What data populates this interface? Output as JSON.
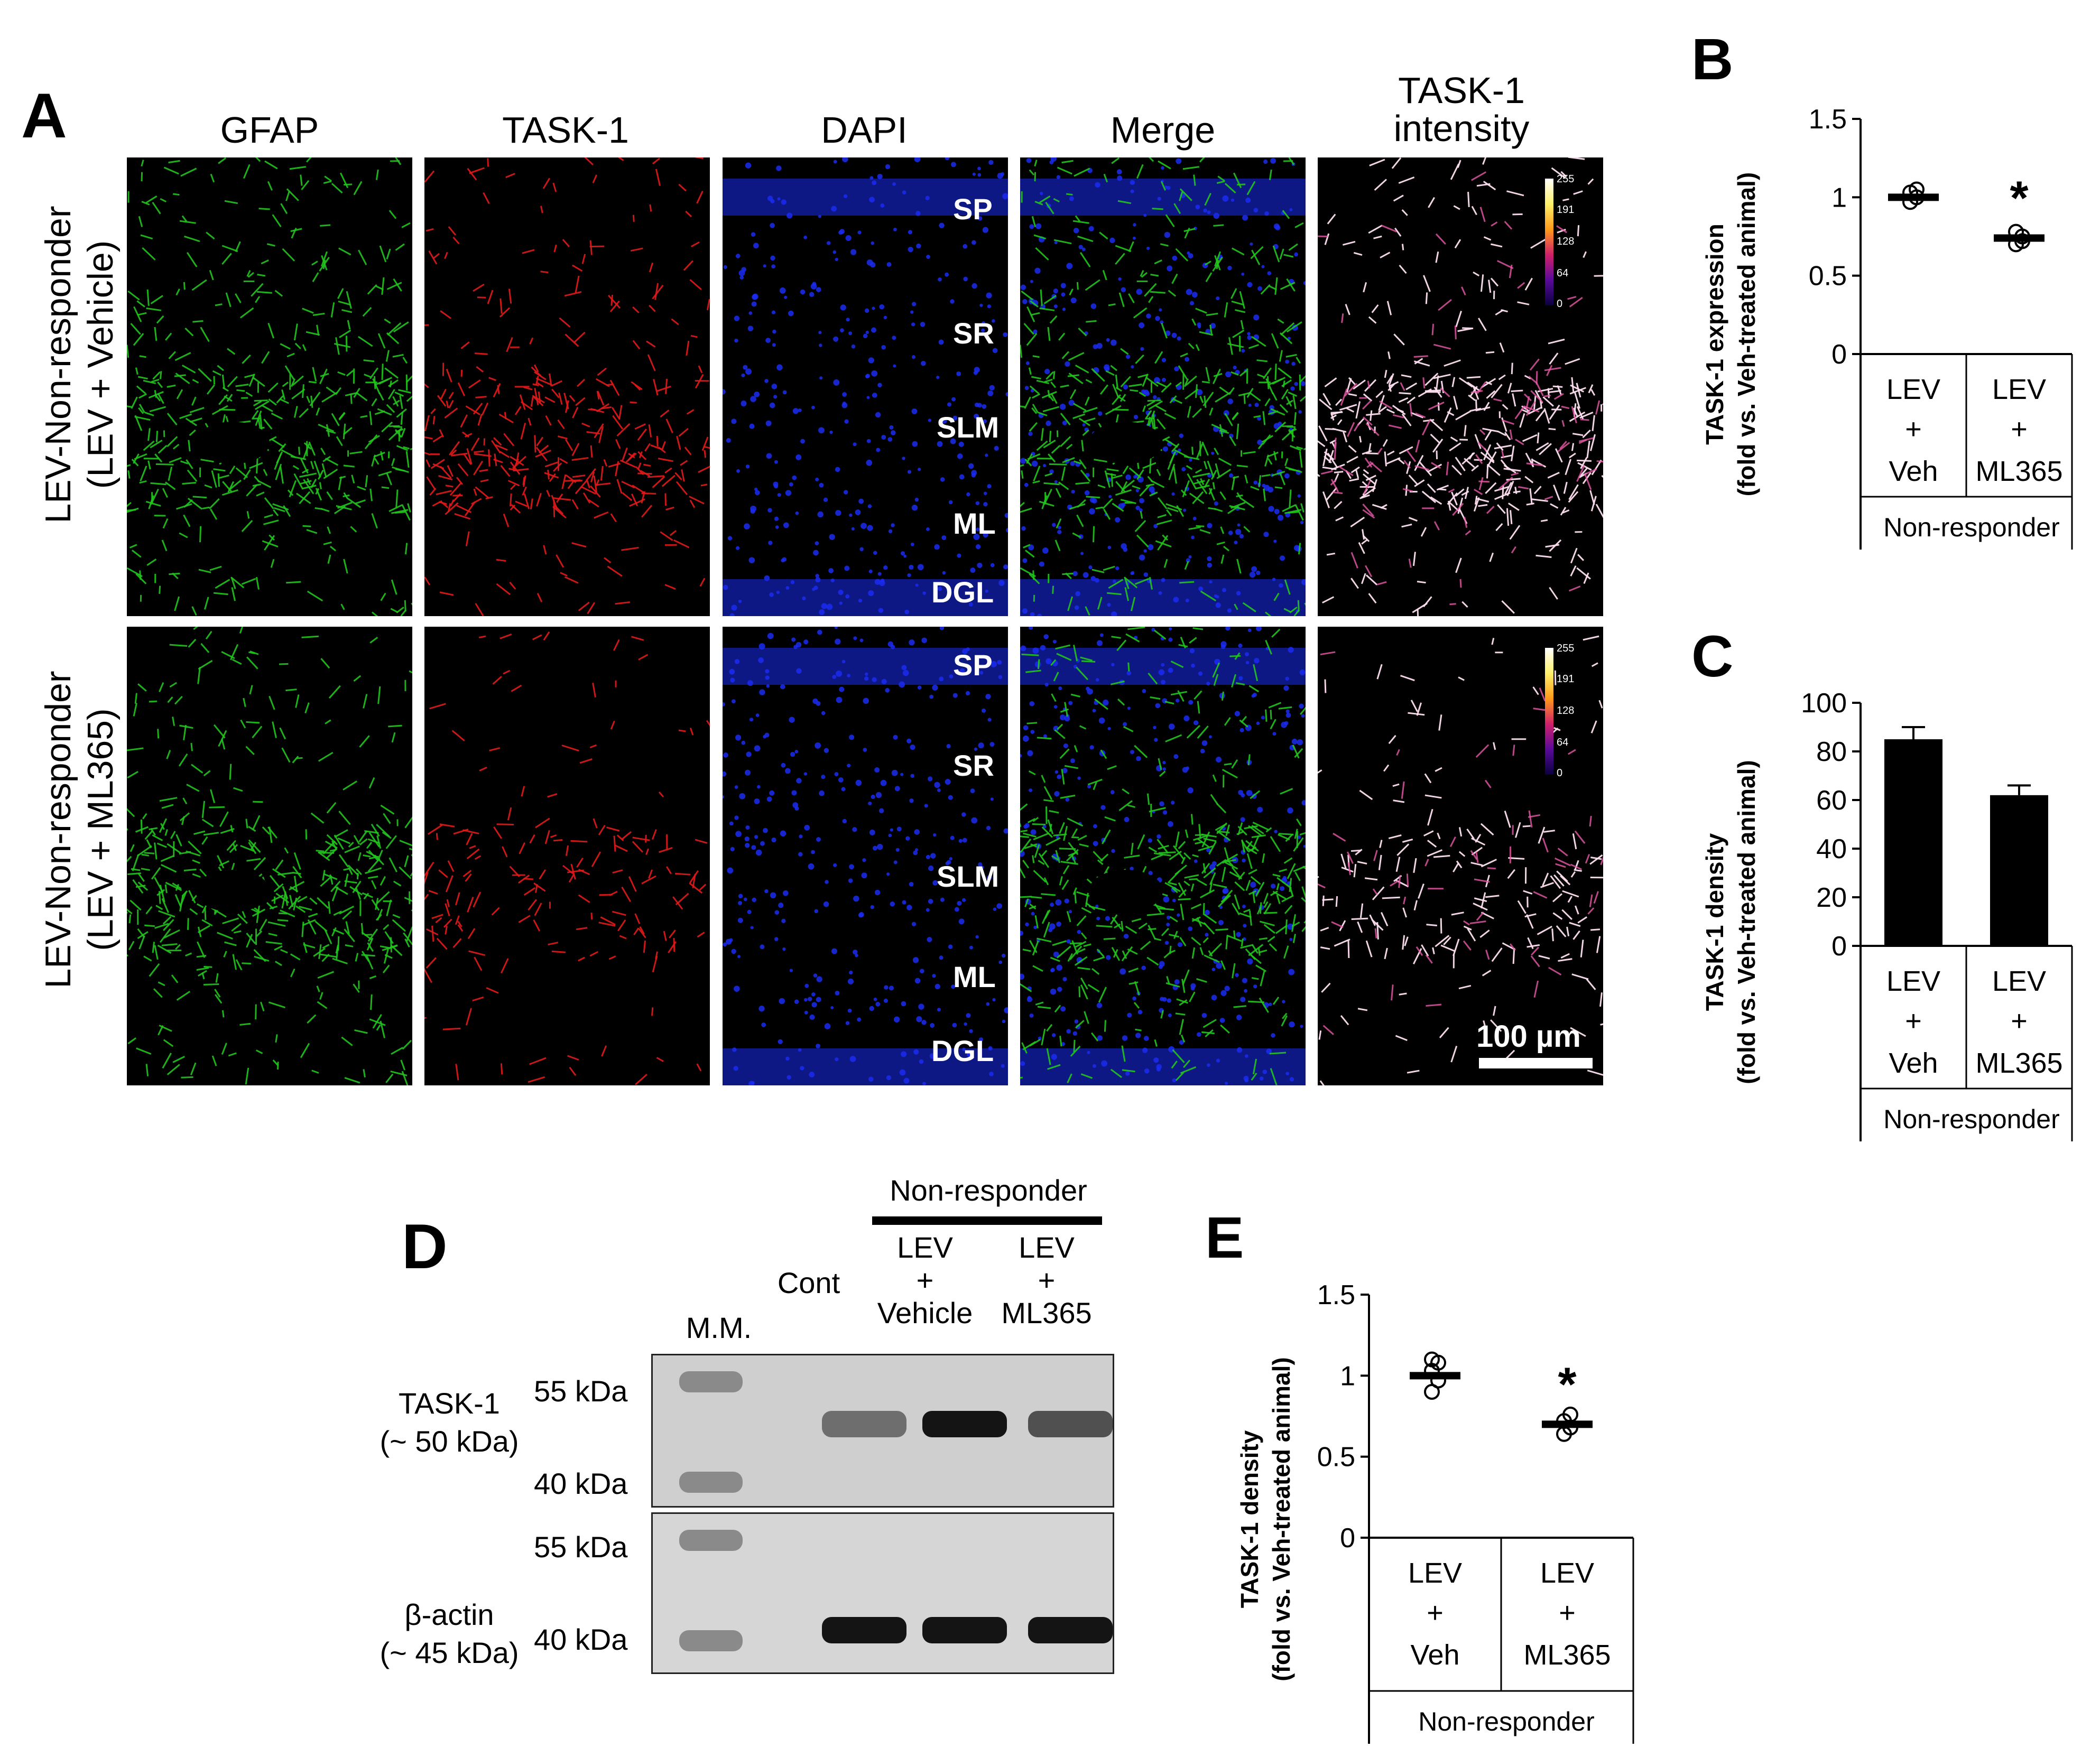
{
  "panel_a": {
    "letter": "A",
    "columns": [
      "GFAP",
      "TASK-1",
      "DAPI",
      "Merge",
      "TASK-1 intensity"
    ],
    "column_title_lines": {
      "intensity_line1": "TASK-1",
      "intensity_line2": "intensity"
    },
    "rows": [
      {
        "label_line1": "LEV-Non-responder",
        "label_line2": "(LEV + Vehicle)"
      },
      {
        "label_line1": "LEV-Non-responder",
        "label_line2": "(LEV + ML365)"
      }
    ],
    "layers": [
      "SP",
      "SR",
      "SLM",
      "ML",
      "DGL"
    ],
    "colorbar_ticks": [
      "255",
      "191",
      "128",
      "64",
      "0"
    ],
    "scale_bar": "100 µm",
    "colors": {
      "gfap": "#22c41e",
      "task1": "#e01a1a",
      "dapi": "#1a2cf0",
      "intensity_hot": "#ffe0f0",
      "intensity_mid": "#e85aa8"
    }
  },
  "chart_data": [
    {
      "id": "B",
      "type": "scatter",
      "letter": "B",
      "ylabel_line1": "TASK-1 expression",
      "ylabel_line2": "(fold vs. Veh-treated animal)",
      "ylim": [
        0,
        1.5
      ],
      "yticks": [
        "0",
        "0.5",
        "1",
        "1.5"
      ],
      "categories": [
        {
          "top": "LEV",
          "mid": "+",
          "bottom": "Veh"
        },
        {
          "top": "LEV",
          "mid": "+",
          "bottom": "ML365"
        }
      ],
      "group_label": "Non-responder",
      "means": [
        1.0,
        0.74
      ],
      "points": [
        [
          0.97,
          1.0,
          1.03,
          1.05
        ],
        [
          0.7,
          0.75,
          0.78,
          0.72
        ]
      ],
      "significance": [
        null,
        "*"
      ]
    },
    {
      "id": "C",
      "type": "bar",
      "letter": "C",
      "ylabel_line1": "TASK-1 density",
      "ylabel_line2": "(fold vs. Veh-treated animal)",
      "ylim": [
        0,
        100
      ],
      "yticks": [
        "0",
        "20",
        "40",
        "60",
        "80",
        "100"
      ],
      "categories": [
        {
          "top": "LEV",
          "mid": "+",
          "bottom": "Veh"
        },
        {
          "top": "LEV",
          "mid": "+",
          "bottom": "ML365"
        }
      ],
      "group_label": "Non-responder",
      "values": [
        85,
        62
      ],
      "errors": [
        5,
        4
      ]
    },
    {
      "id": "E",
      "type": "scatter",
      "letter": "E",
      "ylabel_line1": "TASK-1 density",
      "ylabel_line2": "(fold vs. Veh-treated animal)",
      "ylim": [
        0,
        1.5
      ],
      "yticks": [
        "0",
        "0.5",
        "1",
        "1.5"
      ],
      "categories": [
        {
          "top": "LEV",
          "mid": "+",
          "bottom": "Veh"
        },
        {
          "top": "LEV",
          "mid": "+",
          "bottom": "ML365"
        }
      ],
      "group_label": "Non-responder",
      "means": [
        1.0,
        0.7
      ],
      "points": [
        [
          0.9,
          0.97,
          1.03,
          1.08,
          1.1
        ],
        [
          0.64,
          0.68,
          0.72,
          0.76
        ]
      ],
      "significance": [
        null,
        "*"
      ]
    }
  ],
  "panel_d": {
    "letter": "D",
    "group_label": "Non-responder",
    "lanes": {
      "mm": "M.M.",
      "cont": "Cont",
      "veh_line1": "LEV",
      "veh_line2": "+",
      "veh_line3": "Vehicle",
      "ml_line1": "LEV",
      "ml_line2": "+",
      "ml_line3": "ML365"
    },
    "task1_label_line1": "TASK-1",
    "task1_label_line2": "(~ 50 kDa)",
    "actin_label_line1": "β-actin",
    "actin_label_line2": "(~ 45 kDa)",
    "markers": [
      "55 kDa",
      "40 kDa",
      "55 kDa",
      "40 kDa"
    ],
    "band_intensity": {
      "task1": [
        0.55,
        1.0,
        0.7
      ],
      "actin": [
        1.0,
        1.0,
        1.0
      ]
    }
  }
}
